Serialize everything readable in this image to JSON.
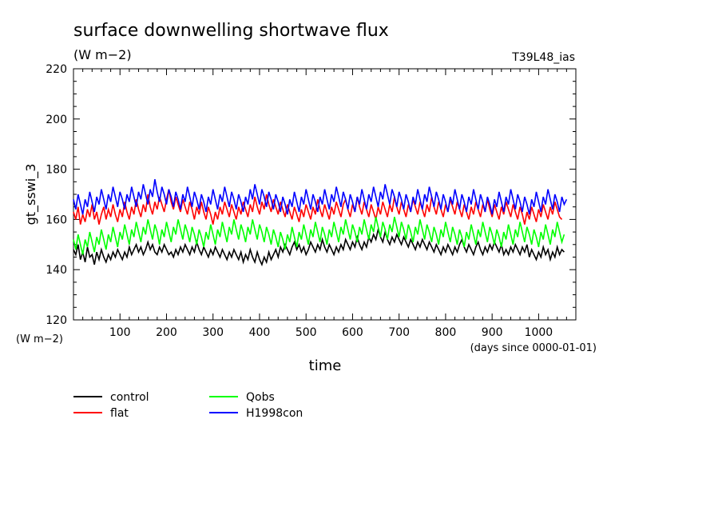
{
  "header": {
    "title": "surface downwelling shortwave flux",
    "units": "(W m−2)",
    "run_label": "T39L48_ias"
  },
  "chart_data": {
    "type": "line",
    "title": "surface downwelling shortwave flux",
    "ylabel": "gt_sswi_3",
    "ylabel_units": "(W m−2)",
    "xlabel": "time",
    "xlabel_units": "(days since 0000-01-01)",
    "xlim": [
      0,
      1080
    ],
    "ylim": [
      120,
      220
    ],
    "x_ticks": [
      100,
      200,
      300,
      400,
      500,
      600,
      700,
      800,
      900,
      1000
    ],
    "y_ticks": [
      120,
      140,
      160,
      180,
      200,
      220
    ],
    "x_step_days": 5,
    "grid": false,
    "legend_position": "bottom-left",
    "series": [
      {
        "name": "control",
        "color": "#000000",
        "values": [
          148,
          146,
          150,
          144,
          147,
          143,
          149,
          145,
          146,
          142,
          147,
          144,
          148,
          145,
          143,
          146,
          144,
          147,
          145,
          148,
          146,
          144,
          147,
          145,
          149,
          146,
          148,
          150,
          147,
          149,
          146,
          148,
          151,
          148,
          150,
          147,
          146,
          149,
          147,
          150,
          148,
          146,
          147,
          145,
          148,
          146,
          149,
          147,
          150,
          148,
          146,
          149,
          147,
          151,
          148,
          146,
          149,
          147,
          145,
          148,
          146,
          149,
          147,
          145,
          148,
          146,
          144,
          147,
          145,
          148,
          146,
          144,
          147,
          143,
          146,
          144,
          148,
          145,
          143,
          147,
          144,
          142,
          145,
          143,
          147,
          144,
          146,
          148,
          145,
          149,
          147,
          150,
          148,
          146,
          149,
          151,
          148,
          150,
          147,
          149,
          146,
          148,
          151,
          149,
          147,
          150,
          148,
          152,
          149,
          147,
          150,
          148,
          146,
          149,
          147,
          150,
          148,
          152,
          150,
          148,
          151,
          149,
          153,
          150,
          148,
          151,
          149,
          153,
          151,
          154,
          152,
          156,
          153,
          151,
          155,
          152,
          150,
          153,
          151,
          154,
          152,
          150,
          153,
          151,
          149,
          152,
          150,
          148,
          151,
          149,
          152,
          150,
          148,
          151,
          149,
          147,
          150,
          148,
          146,
          149,
          147,
          150,
          148,
          146,
          149,
          147,
          150,
          152,
          149,
          147,
          150,
          148,
          146,
          149,
          151,
          148,
          146,
          149,
          147,
          150,
          148,
          151,
          149,
          147,
          150,
          146,
          148,
          146,
          149,
          147,
          150,
          148,
          146,
          149,
          147,
          150,
          145,
          148,
          146,
          144,
          147,
          145,
          149,
          146,
          148,
          144,
          147,
          145,
          149,
          146,
          148,
          147
        ]
      },
      {
        "name": "flat",
        "color": "#ff0000",
        "values": [
          163,
          160,
          165,
          158,
          162,
          159,
          164,
          161,
          166,
          160,
          163,
          158,
          162,
          165,
          160,
          164,
          161,
          166,
          162,
          159,
          164,
          161,
          167,
          163,
          160,
          165,
          162,
          168,
          164,
          161,
          166,
          163,
          170,
          165,
          162,
          167,
          164,
          169,
          166,
          163,
          168,
          172,
          167,
          164,
          169,
          166,
          163,
          168,
          165,
          162,
          167,
          164,
          160,
          165,
          162,
          167,
          163,
          160,
          165,
          162,
          158,
          163,
          160,
          165,
          162,
          167,
          164,
          161,
          166,
          163,
          160,
          165,
          162,
          167,
          164,
          161,
          166,
          163,
          169,
          165,
          162,
          167,
          164,
          170,
          166,
          163,
          168,
          165,
          162,
          167,
          164,
          161,
          166,
          163,
          160,
          165,
          162,
          159,
          164,
          161,
          166,
          163,
          160,
          165,
          162,
          168,
          164,
          161,
          166,
          163,
          160,
          165,
          162,
          167,
          164,
          161,
          166,
          168,
          164,
          161,
          166,
          163,
          169,
          165,
          162,
          167,
          164,
          161,
          166,
          163,
          160,
          165,
          162,
          167,
          164,
          161,
          166,
          163,
          169,
          165,
          162,
          167,
          164,
          161,
          166,
          163,
          168,
          165,
          162,
          167,
          164,
          161,
          166,
          163,
          169,
          165,
          162,
          167,
          164,
          161,
          166,
          163,
          168,
          165,
          162,
          167,
          164,
          161,
          166,
          163,
          160,
          165,
          162,
          167,
          164,
          161,
          166,
          163,
          168,
          164,
          161,
          166,
          163,
          160,
          165,
          162,
          167,
          164,
          161,
          166,
          163,
          160,
          165,
          162,
          158,
          163,
          160,
          165,
          162,
          159,
          164,
          161,
          166,
          163,
          160,
          165,
          162,
          167,
          164,
          161,
          160
        ]
      },
      {
        "name": "Qobs",
        "color": "#00ff00",
        "values": [
          152,
          148,
          154,
          150,
          146,
          152,
          149,
          155,
          151,
          147,
          153,
          150,
          156,
          152,
          148,
          154,
          151,
          157,
          153,
          149,
          155,
          152,
          158,
          154,
          150,
          156,
          153,
          159,
          155,
          151,
          157,
          154,
          160,
          156,
          152,
          158,
          155,
          150,
          156,
          153,
          159,
          155,
          151,
          157,
          154,
          160,
          156,
          152,
          158,
          155,
          151,
          157,
          154,
          150,
          156,
          153,
          149,
          155,
          152,
          158,
          154,
          150,
          156,
          153,
          159,
          155,
          151,
          157,
          154,
          160,
          156,
          152,
          158,
          155,
          151,
          157,
          154,
          160,
          156,
          152,
          158,
          155,
          151,
          157,
          154,
          150,
          156,
          153,
          149,
          155,
          152,
          148,
          154,
          151,
          157,
          153,
          149,
          155,
          152,
          158,
          154,
          150,
          156,
          153,
          159,
          155,
          151,
          157,
          154,
          150,
          156,
          153,
          159,
          155,
          151,
          157,
          154,
          160,
          156,
          152,
          158,
          155,
          151,
          157,
          154,
          160,
          156,
          152,
          158,
          155,
          161,
          157,
          153,
          159,
          156,
          152,
          158,
          155,
          161,
          157,
          153,
          159,
          156,
          152,
          158,
          155,
          151,
          157,
          154,
          160,
          156,
          152,
          158,
          155,
          151,
          157,
          154,
          150,
          156,
          153,
          159,
          155,
          151,
          157,
          154,
          150,
          156,
          153,
          149,
          155,
          152,
          158,
          154,
          150,
          156,
          153,
          159,
          155,
          151,
          157,
          154,
          150,
          156,
          153,
          149,
          155,
          152,
          158,
          154,
          150,
          156,
          153,
          159,
          155,
          151,
          157,
          154,
          150,
          156,
          153,
          149,
          155,
          152,
          158,
          154,
          150,
          156,
          153,
          159,
          155,
          151,
          154
        ]
      },
      {
        "name": "H1998con",
        "color": "#0000ff",
        "values": [
          168,
          164,
          170,
          166,
          162,
          168,
          165,
          171,
          167,
          163,
          169,
          166,
          172,
          168,
          164,
          170,
          167,
          173,
          169,
          165,
          171,
          168,
          164,
          170,
          167,
          173,
          169,
          165,
          171,
          168,
          174,
          170,
          166,
          172,
          169,
          176,
          171,
          167,
          173,
          170,
          166,
          172,
          169,
          165,
          171,
          168,
          164,
          170,
          167,
          173,
          169,
          165,
          171,
          168,
          164,
          170,
          167,
          163,
          169,
          166,
          172,
          168,
          164,
          170,
          167,
          173,
          169,
          165,
          171,
          168,
          164,
          170,
          167,
          163,
          169,
          166,
          172,
          168,
          174,
          170,
          166,
          172,
          169,
          165,
          171,
          168,
          164,
          170,
          167,
          163,
          169,
          166,
          162,
          168,
          165,
          171,
          167,
          163,
          169,
          166,
          172,
          168,
          164,
          170,
          167,
          163,
          169,
          166,
          172,
          168,
          164,
          170,
          167,
          173,
          169,
          165,
          171,
          168,
          164,
          170,
          167,
          163,
          169,
          166,
          172,
          168,
          164,
          170,
          167,
          173,
          169,
          165,
          171,
          168,
          174,
          170,
          166,
          172,
          169,
          165,
          171,
          168,
          164,
          170,
          167,
          163,
          169,
          166,
          172,
          168,
          164,
          170,
          167,
          173,
          169,
          165,
          171,
          168,
          164,
          170,
          167,
          163,
          169,
          166,
          172,
          168,
          164,
          170,
          167,
          163,
          169,
          166,
          172,
          168,
          164,
          170,
          167,
          163,
          169,
          166,
          162,
          168,
          165,
          171,
          167,
          163,
          169,
          166,
          172,
          168,
          164,
          170,
          167,
          163,
          169,
          166,
          162,
          168,
          165,
          171,
          167,
          163,
          169,
          166,
          172,
          168,
          164,
          170,
          167,
          163,
          169,
          166,
          168
        ]
      }
    ]
  }
}
